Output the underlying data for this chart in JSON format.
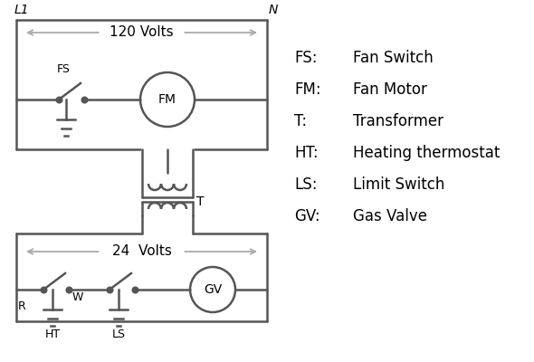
{
  "bg_color": "#ffffff",
  "line_color": "#555555",
  "arrow_color": "#aaaaaa",
  "text_color": "#000000",
  "legend": {
    "FS": "Fan Switch",
    "FM": "Fan Motor",
    "T": "Transformer",
    "HT": "Heating thermostat",
    "LS": "Limit Switch",
    "GV": "Gas Valve"
  },
  "lw": 1.8,
  "font_size": 11,
  "label_font_size": 10,
  "small_font_size": 9
}
